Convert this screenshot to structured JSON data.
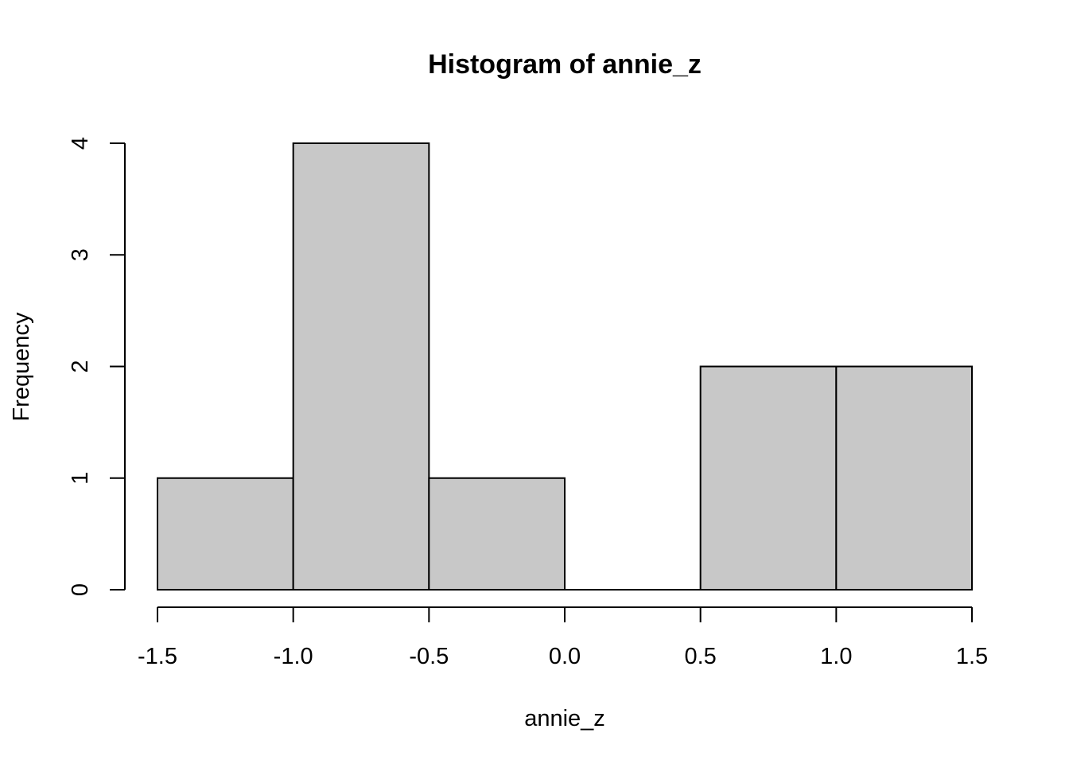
{
  "chart_data": {
    "type": "bar",
    "title": "Histogram of annie_z",
    "xlabel": "annie_z",
    "ylabel": "Frequency",
    "bin_edges": [
      -1.5,
      -1.0,
      -0.5,
      0.0,
      0.5,
      1.0,
      1.5
    ],
    "counts": [
      1,
      4,
      1,
      0,
      2,
      2
    ],
    "xlim": [
      -1.5,
      1.5
    ],
    "ylim": [
      0,
      4
    ],
    "x_ticks": [
      {
        "value": -1.5,
        "label": "-1.5"
      },
      {
        "value": -1.0,
        "label": "-1.0"
      },
      {
        "value": -0.5,
        "label": "-0.5"
      },
      {
        "value": 0.0,
        "label": "0.0"
      },
      {
        "value": 0.5,
        "label": "0.5"
      },
      {
        "value": 1.0,
        "label": "1.0"
      },
      {
        "value": 1.5,
        "label": "1.5"
      }
    ],
    "y_ticks": [
      {
        "value": 0,
        "label": "0"
      },
      {
        "value": 1,
        "label": "1"
      },
      {
        "value": 2,
        "label": "2"
      },
      {
        "value": 3,
        "label": "3"
      },
      {
        "value": 4,
        "label": "4"
      }
    ],
    "grid": false,
    "bar_fill": "#c8c8c8",
    "bar_stroke": "#000000"
  }
}
